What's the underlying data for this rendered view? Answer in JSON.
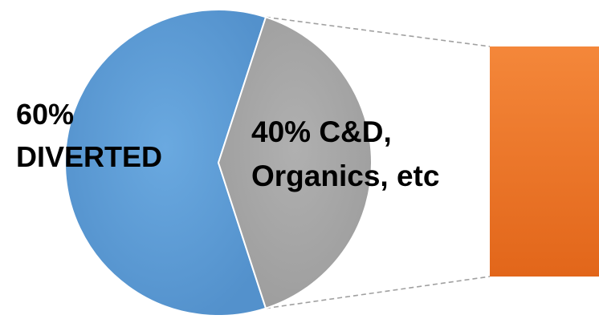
{
  "chart_data": {
    "type": "pie",
    "slices": [
      {
        "label_lines": [
          "60%",
          "DIVERTED"
        ],
        "value": 60,
        "color": "#5b9bd5"
      },
      {
        "label_lines": [
          "40% C&D,",
          "Organics, etc"
        ],
        "value": 40,
        "color": "#a5a5a5"
      }
    ],
    "breakout_bar": {
      "color_top": "#f4873a",
      "color_bottom": "#e2661a"
    },
    "connector_color": "#a0a0a0"
  }
}
